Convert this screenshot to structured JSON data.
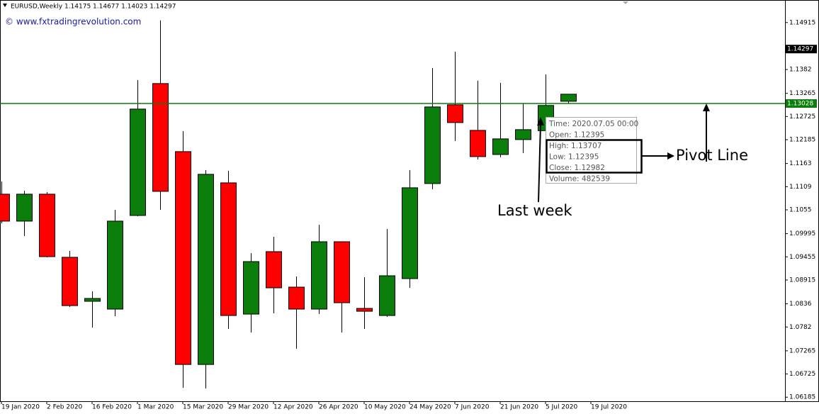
{
  "chart_data": {
    "type": "candlestick",
    "title": "EURUSD,Weekly  1.14175 1.14677 1.14023 1.14297",
    "watermark": "© www.fxtradingrevolution.com",
    "x": [
      "19 Jan 2020",
      null,
      "2 Feb 2020",
      null,
      "16 Feb 2020",
      null,
      "1 Mar 2020",
      null,
      "15 Mar 2020",
      null,
      "29 Mar 2020",
      null,
      "12 Apr 2020",
      null,
      "26 Apr 2020",
      null,
      "10 May 2020",
      null,
      "24 May 2020",
      null,
      "7 Jun 2020",
      null,
      "21 Jun 2020",
      null,
      "5 Jul 2020",
      null,
      "19 Jul 2020"
    ],
    "series": [
      {
        "up_color": "#0a7d0a",
        "down_color": "#ff0000",
        "open": [
          1.10915,
          1.10287,
          1.10915,
          1.09444,
          1.08419,
          1.08237,
          1.10419,
          1.13493,
          1.11907,
          1.06947,
          1.11179,
          1.08121,
          1.09576,
          1.08749,
          1.08237,
          1.09807,
          1.08253,
          1.08088,
          1.08948,
          1.11163,
          1.12998,
          1.12402,
          1.1184,
          1.12188,
          1.12395,
          1.1308,
          null
        ],
        "high": [
          1.11212,
          1.10997,
          1.10964,
          1.09592,
          1.0865,
          1.10551,
          1.13576,
          1.14965,
          1.12386,
          1.11477,
          1.1146,
          1.09543,
          1.09923,
          1.08997,
          1.10204,
          1.09807,
          1.08981,
          1.10105,
          1.11477,
          1.13857,
          1.14237,
          1.13559,
          1.1351,
          1.13031,
          1.13707,
          1.13245,
          null
        ],
        "low": [
          1.10237,
          1.0994,
          1.09444,
          1.08286,
          1.07807,
          1.08072,
          1.10402,
          1.10551,
          1.06402,
          1.06385,
          1.07774,
          1.07691,
          1.08138,
          1.07311,
          1.08121,
          1.07691,
          1.07774,
          1.08055,
          1.08733,
          1.11031,
          1.12155,
          1.11725,
          1.11774,
          1.11873,
          1.12395,
          1.13031,
          null
        ],
        "close": [
          1.10287,
          1.10915,
          1.0946,
          1.08319,
          1.08485,
          1.10287,
          1.12898,
          1.10981,
          1.06947,
          1.11378,
          1.08088,
          1.09344,
          1.08733,
          1.08237,
          1.09807,
          1.08386,
          1.08187,
          1.09014,
          1.11064,
          1.12948,
          1.12584,
          1.11791,
          1.12204,
          1.12419,
          1.12982,
          1.13245,
          null
        ]
      }
    ],
    "ylim": [
      1.0609,
      1.1544
    ],
    "yticks": [
      1.14915,
      1.1382,
      1.13265,
      1.12725,
      1.12185,
      1.1163,
      1.1109,
      1.1055,
      1.09995,
      1.09455,
      1.08915,
      1.0836,
      1.0782,
      1.07265,
      1.06725,
      1.06185
    ],
    "price_label": {
      "value": 1.14297,
      "label": "1.14297"
    },
    "pivot_line": {
      "value": 1.13028,
      "label": "1.13028",
      "color": "#0a7d0a"
    },
    "tooltip": [
      "Time: 2020.07.05 00:00",
      "Open: 1.12395",
      "High: 1.13707",
      "Low:  1.12395",
      "Close: 1.12982",
      "Volume: 482539"
    ],
    "annotations": [
      "Pivot Line",
      "Last week"
    ]
  }
}
